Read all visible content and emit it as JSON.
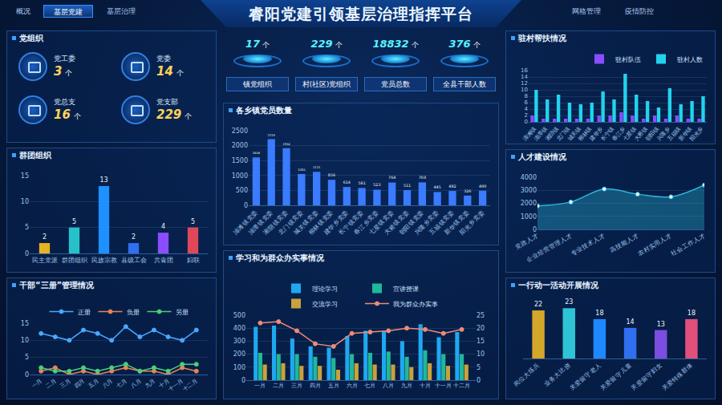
{
  "header": {
    "title": "睿阳党建引领基层治理指挥平台",
    "nav_left": [
      "概况",
      "基层党建",
      "基层治理"
    ],
    "active": "基层党建",
    "nav_right": [
      "网格管理",
      "疫情防控"
    ]
  },
  "party_org": {
    "title": "党组织",
    "unit": "个",
    "items": [
      {
        "label": "党工委",
        "value": 3
      },
      {
        "label": "党委",
        "value": 14
      },
      {
        "label": "党总支",
        "value": 16
      },
      {
        "label": "党支部",
        "value": 229
      }
    ]
  },
  "stats": {
    "unit": "个",
    "items": [
      {
        "label": "镇党组织",
        "value": 17
      },
      {
        "label": "村(社区)党组织",
        "value": 229
      },
      {
        "label": "党员总数",
        "value": 18832
      },
      {
        "label": "全县干部人数",
        "value": 376
      }
    ]
  },
  "chart_data": [
    {
      "type": "bar",
      "title": "群团组织",
      "categories": [
        "民主党派",
        "群团组织",
        "民族宗教",
        "县级工会",
        "共青团",
        "妇联"
      ],
      "values": [
        2,
        5,
        13,
        2,
        4,
        5
      ],
      "colors": [
        "#e6b422",
        "#27c2c9",
        "#1e90ff",
        "#2f6ff0",
        "#8a4dff",
        "#e0485a"
      ],
      "ylim": [
        0,
        15
      ],
      "yticks": [
        0,
        5,
        10,
        15
      ],
      "grid": true,
      "data_labels": true
    },
    {
      "type": "line",
      "title": "干部“三册”管理情况",
      "categories": [
        "一月",
        "二月",
        "三月",
        "四月",
        "五月",
        "六月",
        "七月",
        "八月",
        "九月",
        "十月",
        "十一月",
        "十二月"
      ],
      "series": [
        {
          "name": "正册",
          "color": "#4aa8ff",
          "values": [
            12,
            11,
            10,
            13,
            12,
            10,
            14,
            11,
            13,
            11,
            10,
            13
          ]
        },
        {
          "name": "负册",
          "color": "#e8835a",
          "values": [
            1,
            2,
            0,
            1,
            0,
            1,
            2,
            1,
            1,
            0,
            2,
            1
          ]
        },
        {
          "name": "另册",
          "color": "#4ccf7a",
          "values": [
            2,
            1,
            1,
            2,
            1,
            2,
            3,
            1,
            2,
            1,
            3,
            3
          ]
        }
      ],
      "ylim": [
        0,
        15
      ],
      "yticks": [
        0,
        5,
        10,
        15
      ],
      "grid": true,
      "legend": "top",
      "marker": "circle"
    },
    {
      "type": "bar",
      "title": "各乡镇党员数量",
      "categories": [
        "漳滩镇党委",
        "漳潭镇党委",
        "湘阴镇党委",
        "北门镇党委",
        "城关镇党委",
        "柳林镇党委",
        "建华乡党委",
        "长宁镇党委",
        "春江乡党委",
        "七星镇党委",
        "大桥镇党委",
        "朝阳镇党委",
        "兴隆乡党委",
        "五福镇党委",
        "新华镇党委",
        "阳光乡党委"
      ],
      "values": [
        1606,
        2219,
        1914,
        1050,
        1121,
        856,
        614,
        581,
        523,
        764,
        511,
        769,
        445,
        482,
        326,
        490
      ],
      "color": "#3a7bff",
      "ylim": [
        0,
        2500
      ],
      "yticks": [
        0,
        500,
        1000,
        1500,
        2000,
        2500
      ],
      "grid": true,
      "data_labels": true
    },
    {
      "type": "bar",
      "title": "学习和为群众办实事情况",
      "categories": [
        "一月",
        "二月",
        "三月",
        "四月",
        "五月",
        "六月",
        "七月",
        "八月",
        "九月",
        "十月",
        "十一月",
        "十二月"
      ],
      "series": [
        {
          "name": "理论学习",
          "color": "#1fa8f0",
          "values": [
            410,
            420,
            320,
            260,
            250,
            340,
            380,
            380,
            300,
            430,
            330,
            370
          ]
        },
        {
          "name": "宣讲授课",
          "color": "#1fb89a",
          "values": [
            210,
            200,
            200,
            180,
            170,
            200,
            210,
            220,
            180,
            230,
            200,
            200
          ]
        },
        {
          "name": "交流学习",
          "color": "#c9a23a",
          "values": [
            120,
            130,
            110,
            110,
            80,
            130,
            120,
            120,
            100,
            130,
            110,
            120
          ]
        },
        {
          "name": "我为群众办实事",
          "type": "line",
          "axis": "y2",
          "color": "#f08a7a",
          "values": [
            22,
            22.5,
            19,
            14,
            13,
            18,
            18.5,
            19,
            20,
            19.5,
            18,
            19.5
          ]
        }
      ],
      "ylim": [
        0,
        500
      ],
      "yticks": [
        0,
        100,
        200,
        300,
        400,
        500
      ],
      "y2lim": [
        0,
        25
      ],
      "y2ticks": [
        0,
        5,
        10,
        15,
        20,
        25
      ],
      "grid": true,
      "legend": "top",
      "marker": "circle"
    },
    {
      "type": "bar",
      "title": "驻村帮扶情况",
      "categories": [
        "漳滩镇",
        "漳潭镇",
        "湘阴镇",
        "北门镇",
        "城关镇",
        "柳林镇",
        "建华乡",
        "长宁镇",
        "春江乡",
        "七星镇",
        "大桥镇",
        "朝阳镇",
        "兴隆乡",
        "五福镇",
        "新华镇",
        "阳光乡"
      ],
      "series": [
        {
          "name": "驻村队伍",
          "color": "#8a4dff",
          "values": [
            2,
            1,
            1,
            1,
            1,
            1,
            2,
            2,
            3,
            2,
            1,
            2,
            1,
            2,
            1,
            1
          ]
        },
        {
          "name": "驻村人数",
          "color": "#22d3ee",
          "values": [
            10,
            7,
            8.5,
            6,
            5.5,
            6,
            9.5,
            7,
            15,
            8.5,
            6.5,
            4.5,
            10.5,
            5.5,
            6.5,
            8
          ]
        }
      ],
      "ylim": [
        0,
        16
      ],
      "yticks": [
        0,
        2,
        4,
        6,
        8,
        10,
        12,
        14,
        16
      ],
      "grid": true,
      "legend": "top-right"
    },
    {
      "type": "area",
      "title": "人才建设情况",
      "categories": [
        "党政人才",
        "企业经营管理人才",
        "专业技术人才",
        "高技能人才",
        "农村实用人才",
        "社会工作人才"
      ],
      "values": [
        1800,
        2100,
        3100,
        2700,
        2500,
        3400
      ],
      "color": "#2bb7d6",
      "ylim": [
        0,
        4000
      ],
      "yticks": [
        0,
        1000,
        2000,
        3000,
        4000
      ],
      "grid": true,
      "marker": "circle",
      "line_style": "smooth"
    },
    {
      "type": "bar",
      "title": "一行动一活动开展情况",
      "categories": [
        "岗位大练兵",
        "业务大比拼",
        "关爱留守老人",
        "关爱留守儿童",
        "关爱留守妇女",
        "关爱特殊群体"
      ],
      "values": [
        22,
        23,
        18,
        14,
        13,
        18
      ],
      "colors": [
        "#d4a62a",
        "#2ec4d6",
        "#1e88ff",
        "#2f6ff0",
        "#7b4de0",
        "#e0507a"
      ],
      "data_labels": true,
      "tick_labels": "x"
    }
  ]
}
